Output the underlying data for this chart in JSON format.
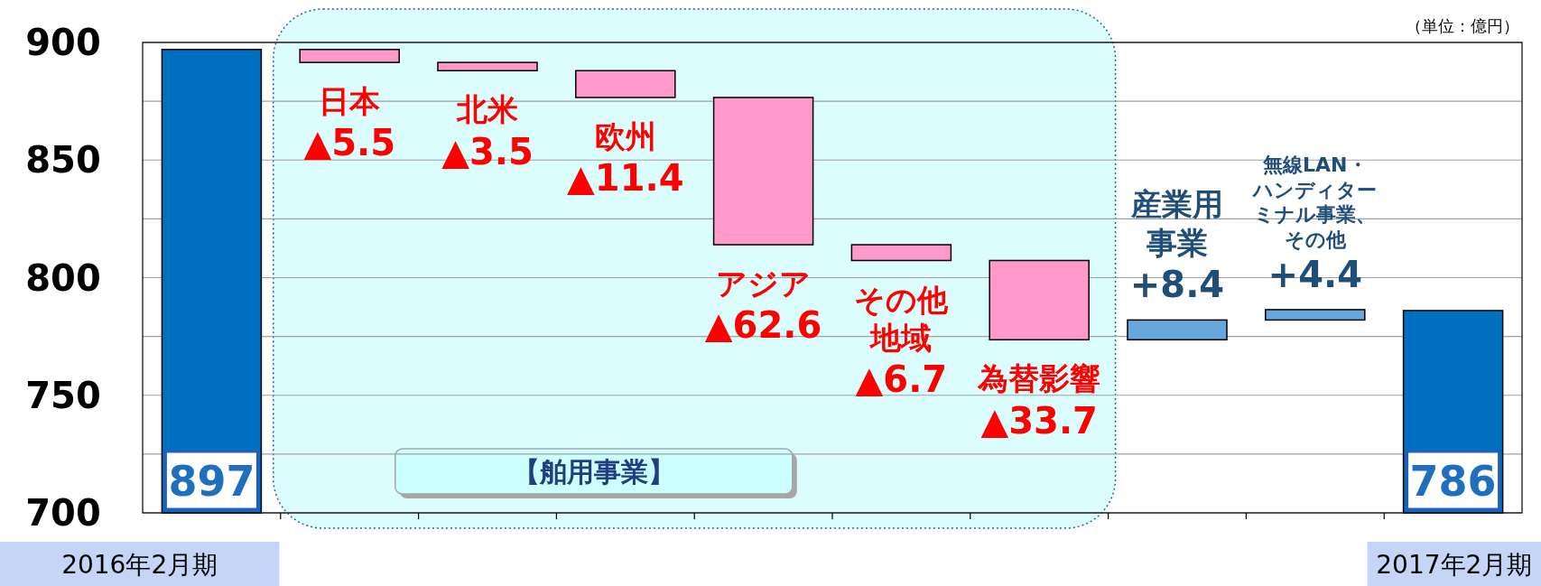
{
  "chart_data": {
    "type": "bar",
    "categories": [
      "2016年2月期",
      "日本",
      "北米",
      "欧州",
      "アジア",
      "その他地域",
      "為替影響",
      "産業用事業",
      "無線LAN・ハンディターミナル事業、その他",
      "2017年2月期"
    ],
    "values": [
      897,
      -5.5,
      -3.5,
      -11.4,
      -62.6,
      -6.7,
      -33.7,
      8.4,
      4.4,
      786
    ],
    "base": [
      null,
      897,
      891.5,
      888,
      876.6,
      814,
      807.3,
      773.6,
      782,
      null
    ],
    "colors": [
      "#0070c0",
      "#ff99cc",
      "#ff99cc",
      "#ff99cc",
      "#ff99cc",
      "#ff99cc",
      "#ff99cc",
      "#66a8dc",
      "#66a8dc",
      "#0070c0"
    ],
    "value_labels": [
      "897",
      "▲5.5",
      "▲3.5",
      "▲11.4",
      "▲62.6",
      "▲6.7",
      "▲33.7",
      "+8.4",
      "+4.4",
      "786"
    ],
    "ylim": [
      700,
      900
    ],
    "yticks": [
      700,
      {
        "value": 725,
        "label": null
      },
      750,
      {
        "value": 775,
        "label": null
      },
      800,
      {
        "value": 825,
        "label": null
      },
      850,
      {
        "value": 875,
        "label": null
      },
      900
    ],
    "grid": "y",
    "annotations": [
      "（単位：億円）",
      "【舶用事業】"
    ]
  }
}
